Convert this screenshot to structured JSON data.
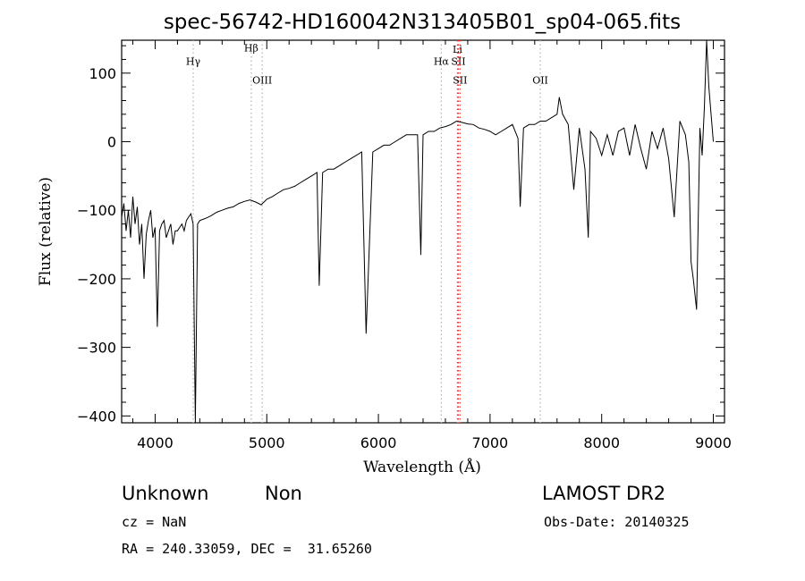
{
  "chart_data": {
    "type": "line",
    "title": "spec-56742-HD160042N313405B01_sp04-065.fits",
    "xlabel": "Wavelength (Å)",
    "ylabel": "Flux (relative)",
    "xlim": [
      3700,
      9100
    ],
    "ylim": [
      -410,
      148
    ],
    "x_ticks": [
      4000,
      5000,
      6000,
      7000,
      8000,
      9000
    ],
    "y_ticks": [
      -400,
      -300,
      -200,
      -100,
      0,
      100
    ],
    "x_tick_labels": [
      "4000",
      "5000",
      "6000",
      "7000",
      "8000",
      "9000"
    ],
    "y_tick_labels": [
      "−400",
      "−300",
      "−200",
      "−100",
      "0",
      "100"
    ],
    "grid": false,
    "series": [
      {
        "color": "#000000",
        "x": [
          3700,
          3720,
          3740,
          3760,
          3780,
          3800,
          3820,
          3840,
          3860,
          3880,
          3900,
          3920,
          3940,
          3960,
          3980,
          4000,
          4020,
          4040,
          4060,
          4080,
          4100,
          4120,
          4140,
          4160,
          4180,
          4200,
          4220,
          4240,
          4260,
          4280,
          4300,
          4320,
          4340,
          4360,
          4380,
          4400,
          4450,
          4500,
          4550,
          4600,
          4650,
          4700,
          4750,
          4800,
          4850,
          4900,
          4950,
          5000,
          5050,
          5100,
          5150,
          5200,
          5250,
          5300,
          5350,
          5400,
          5450,
          5470,
          5500,
          5550,
          5600,
          5650,
          5700,
          5750,
          5800,
          5850,
          5890,
          5950,
          6000,
          6050,
          6100,
          6150,
          6200,
          6250,
          6300,
          6350,
          6380,
          6400,
          6450,
          6500,
          6550,
          6600,
          6650,
          6700,
          6750,
          6800,
          6850,
          6900,
          6950,
          7000,
          7050,
          7100,
          7150,
          7200,
          7250,
          7270,
          7300,
          7350,
          7400,
          7450,
          7500,
          7550,
          7600,
          7620,
          7650,
          7700,
          7750,
          7800,
          7850,
          7880,
          7900,
          7950,
          8000,
          8050,
          8100,
          8150,
          8200,
          8250,
          8300,
          8350,
          8400,
          8450,
          8500,
          8550,
          8600,
          8650,
          8700,
          8750,
          8780,
          8800,
          8820,
          8850,
          8880,
          8900,
          8920,
          8940,
          8960,
          8980,
          9000
        ],
        "y": [
          -110,
          -90,
          -130,
          -100,
          -140,
          -80,
          -120,
          -95,
          -150,
          -120,
          -200,
          -135,
          -115,
          -100,
          -140,
          -125,
          -270,
          -130,
          -120,
          -115,
          -140,
          -130,
          -120,
          -150,
          -130,
          -130,
          -125,
          -120,
          -130,
          -115,
          -110,
          -105,
          -120,
          -410,
          -120,
          -115,
          -112,
          -108,
          -103,
          -100,
          -97,
          -95,
          -90,
          -87,
          -85,
          -88,
          -92,
          -84,
          -80,
          -75,
          -70,
          -68,
          -65,
          -60,
          -55,
          -50,
          -45,
          -210,
          -45,
          -40,
          -40,
          -35,
          -30,
          -25,
          -20,
          -15,
          -280,
          -15,
          -10,
          -5,
          -5,
          0,
          5,
          10,
          10,
          10,
          -165,
          10,
          15,
          15,
          20,
          22,
          25,
          30,
          28,
          26,
          25,
          20,
          18,
          15,
          10,
          15,
          20,
          25,
          5,
          -95,
          20,
          25,
          25,
          30,
          30,
          35,
          40,
          65,
          40,
          25,
          -70,
          20,
          -40,
          -140,
          15,
          5,
          -20,
          10,
          -20,
          15,
          20,
          -20,
          25,
          -10,
          -40,
          15,
          -10,
          20,
          -25,
          -110,
          30,
          10,
          -30,
          -175,
          -200,
          -245,
          20,
          -20,
          50,
          148,
          80,
          40,
          0
        ]
      }
    ],
    "line_markers": [
      {
        "label": "Hγ",
        "x": 4341,
        "color": "#b0b0b0",
        "label_y": 112
      },
      {
        "label": "Hβ",
        "x": 4861,
        "color": "#b0b0b0",
        "label_y": 132
      },
      {
        "label": "OIII",
        "x": 4959,
        "color": "#b0b0b0",
        "label_y": 85
      },
      {
        "label": "Hα",
        "x": 6563,
        "color": "#b0b0b0",
        "label_y": 112
      },
      {
        "label": "SII",
        "x": 6716,
        "color": "#ff3030",
        "label_y": 112
      },
      {
        "label": "Li",
        "x": 6708,
        "color": "#ff3030",
        "label_y": 130
      },
      {
        "label": "SII",
        "x": 6731,
        "color": "#ff3030",
        "label_y": 85
      },
      {
        "label": "OII",
        "x": 7450,
        "color": "#b0b0b0",
        "label_y": 85
      }
    ]
  },
  "info": {
    "object_class": "Unknown",
    "subclass": "Non",
    "survey": "LAMOST DR2",
    "redshift": "cz = NaN",
    "obs_date": "Obs-Date: 20140325",
    "coords": "RA = 240.33059, DEC =  31.65260"
  }
}
